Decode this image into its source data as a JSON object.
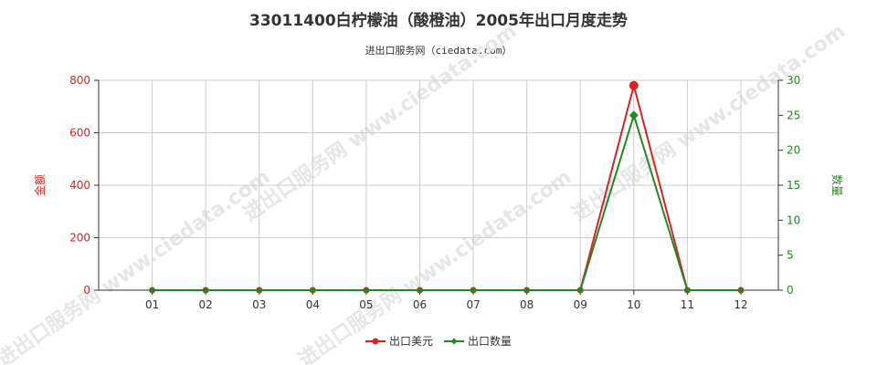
{
  "title": "33011400白柠檬油（酸橙油）2005年出口月度走势",
  "subtitle": "进出口服务网（ciedata.com）",
  "watermark_text": "进出口服务网 www.ciedata.com",
  "colors": {
    "amount": "#dd2222",
    "quantity": "#228822",
    "grid": "#cccccc",
    "axis": "#333333"
  },
  "chart_data": {
    "type": "line",
    "categories": [
      "01",
      "02",
      "03",
      "04",
      "05",
      "06",
      "07",
      "08",
      "09",
      "10",
      "11",
      "12"
    ],
    "y_left": {
      "label": "金额",
      "ylim": [
        0,
        800
      ],
      "ticks": [
        "0",
        "200",
        "400",
        "600",
        "800"
      ]
    },
    "y_right": {
      "label": "数量",
      "ylim": [
        0,
        30
      ],
      "ticks": [
        "0",
        "5",
        "10",
        "15",
        "20",
        "25",
        "30"
      ]
    },
    "grid": true,
    "legend_position": "bottom",
    "series": [
      {
        "name": "出口美元",
        "axis": "left",
        "marker": "circle",
        "values": [
          0,
          0,
          0,
          0,
          0,
          0,
          0,
          0,
          0,
          780,
          0,
          0
        ]
      },
      {
        "name": "出口数量",
        "axis": "right",
        "marker": "diamond",
        "values": [
          0,
          0,
          0,
          0,
          0,
          0,
          0,
          0,
          0,
          25,
          0,
          0
        ]
      }
    ]
  }
}
